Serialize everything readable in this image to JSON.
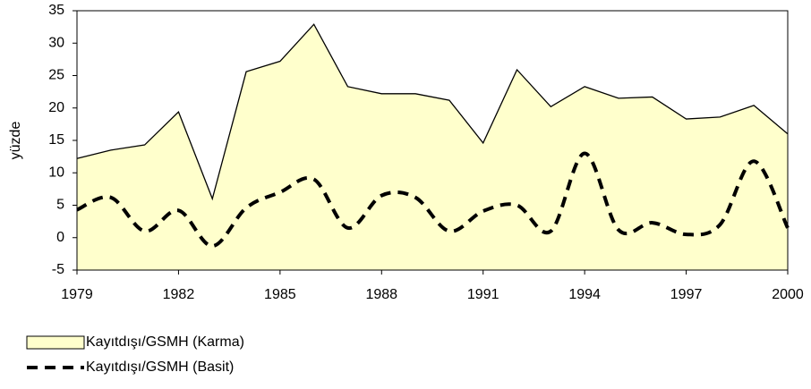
{
  "chart_data": {
    "type": "area",
    "y_label": "yüzde",
    "x": [
      1979,
      1980,
      1981,
      1982,
      1983,
      1984,
      1985,
      1986,
      1987,
      1988,
      1989,
      1990,
      1991,
      1992,
      1993,
      1994,
      1995,
      1996,
      1997,
      1998,
      1999,
      2000
    ],
    "series": [
      {
        "name": "Kayıtdışı/GSMH (Karma)",
        "type": "area",
        "color": "#ffffcc",
        "values": [
          12.2,
          13.5,
          14.3,
          19.4,
          6.0,
          25.6,
          27.2,
          32.9,
          23.3,
          22.2,
          22.2,
          21.2,
          14.6,
          25.9,
          20.2,
          23.3,
          21.5,
          21.7,
          18.3,
          18.6,
          20.4,
          16.0
        ]
      },
      {
        "name": "Kayıtdışı/GSMH (Basit)",
        "type": "line",
        "color": "#000000",
        "values": [
          4.3,
          6.2,
          1.0,
          4.2,
          -1.3,
          4.6,
          7.0,
          9.0,
          1.5,
          6.5,
          6.2,
          1.0,
          4.1,
          5.0,
          1.0,
          13.0,
          1.2,
          2.3,
          0.5,
          2.0,
          11.8,
          1.5
        ]
      }
    ],
    "xlim": [
      1979,
      2000
    ],
    "xticks": [
      1979,
      1982,
      1985,
      1988,
      1991,
      1994,
      1997,
      2000
    ],
    "ylim": [
      -5,
      35
    ],
    "yticks": [
      -5,
      0,
      5,
      10,
      15,
      20,
      25,
      30,
      35
    ],
    "grid": false,
    "legend": "bottom-left"
  }
}
